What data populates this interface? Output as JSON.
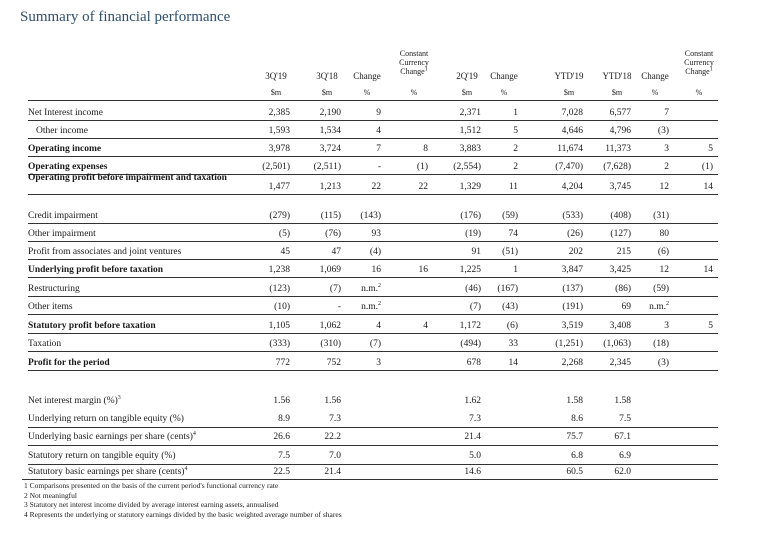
{
  "title": "Summary of financial performance",
  "columns": [
    {
      "key": "q319",
      "header": "3Q'19",
      "unit": "$m",
      "right": 290
    },
    {
      "key": "q318",
      "header": "3Q'18",
      "unit": "$m",
      "right": 341
    },
    {
      "key": "chg1",
      "header": "Change",
      "unit": "%",
      "right": 381
    },
    {
      "key": "cc1",
      "header": "Constant Currency Change¹",
      "unit": "%",
      "right": 428
    },
    {
      "key": "q219",
      "header": "2Q'19",
      "unit": "$m",
      "right": 481
    },
    {
      "key": "chg2",
      "header": "Change",
      "unit": "%",
      "right": 518
    },
    {
      "key": "ytd19",
      "header": "YTD'19",
      "unit": "$m",
      "right": 583
    },
    {
      "key": "ytd18",
      "header": "YTD'18",
      "unit": "$m",
      "right": 631
    },
    {
      "key": "chg3",
      "header": "Change",
      "unit": "%",
      "right": 669
    },
    {
      "key": "cc3",
      "header": "Constant Currency Change¹",
      "unit": "%",
      "right": 713
    }
  ],
  "rows": [
    {
      "label": "Net Interest income",
      "bold": false,
      "indent": false,
      "values": [
        "2,385",
        "2,190",
        "9",
        "",
        "2,371",
        "1",
        "7,028",
        "6,577",
        "7",
        ""
      ]
    },
    {
      "label": "Other income",
      "bold": false,
      "indent": true,
      "values": [
        "1,593",
        "1,534",
        "4",
        "",
        "1,512",
        "5",
        "4,646",
        "4,796",
        "(3)",
        ""
      ]
    },
    {
      "label": "Operating income",
      "bold": true,
      "indent": false,
      "values": [
        "3,978",
        "3,724",
        "7",
        "8",
        "3,883",
        "2",
        "11,674",
        "11,373",
        "3",
        "5"
      ]
    },
    {
      "label": "Operating expenses",
      "bold": true,
      "indent": false,
      "values": [
        "(2,501)",
        "(2,511)",
        "-",
        "(1)",
        "(2,554)",
        "2",
        "(7,470)",
        "(7,628)",
        "2",
        "(1)"
      ]
    },
    {
      "label": "Operating profit before impairment and taxation",
      "bold": true,
      "indent": false,
      "values": [
        "1,477",
        "1,213",
        "22",
        "22",
        "1,329",
        "11",
        "4,204",
        "3,745",
        "12",
        "14"
      ]
    },
    {
      "label": "Credit impairment",
      "bold": false,
      "indent": false,
      "values": [
        "(279)",
        "(115)",
        "(143)",
        "",
        "(176)",
        "(59)",
        "(533)",
        "(408)",
        "(31)",
        ""
      ]
    },
    {
      "label": "Other impairment",
      "bold": false,
      "indent": false,
      "values": [
        "(5)",
        "(76)",
        "93",
        "",
        "(19)",
        "74",
        "(26)",
        "(127)",
        "80",
        ""
      ]
    },
    {
      "label": "Profit from associates and joint ventures",
      "bold": false,
      "indent": false,
      "values": [
        "45",
        "47",
        "(4)",
        "",
        "91",
        "(51)",
        "202",
        "215",
        "(6)",
        ""
      ]
    },
    {
      "label": "Underlying profit before taxation",
      "bold": true,
      "indent": false,
      "values": [
        "1,238",
        "1,069",
        "16",
        "16",
        "1,225",
        "1",
        "3,847",
        "3,425",
        "12",
        "14"
      ]
    },
    {
      "label": "Restructuring",
      "bold": false,
      "indent": false,
      "values": [
        "(123)",
        "(7)",
        "n.m.²",
        "",
        "(46)",
        "(167)",
        "(137)",
        "(86)",
        "(59)",
        ""
      ]
    },
    {
      "label": "Other items",
      "bold": false,
      "indent": false,
      "values": [
        "(10)",
        "-",
        "n.m.²",
        "",
        "(7)",
        "(43)",
        "(191)",
        "69",
        "n.m.²",
        ""
      ]
    },
    {
      "label": "Statutory profit before taxation",
      "bold": true,
      "indent": false,
      "values": [
        "1,105",
        "1,062",
        "4",
        "4",
        "1,172",
        "(6)",
        "3,519",
        "3,408",
        "3",
        "5"
      ]
    },
    {
      "label": "Taxation",
      "bold": false,
      "indent": false,
      "values": [
        "(333)",
        "(310)",
        "(7)",
        "",
        "(494)",
        "33",
        "(1,251)",
        "(1,063)",
        "(18)",
        ""
      ]
    },
    {
      "label": "Profit for the period",
      "bold": true,
      "indent": false,
      "values": [
        "772",
        "752",
        "3",
        "",
        "678",
        "14",
        "2,268",
        "2,345",
        "(3)",
        ""
      ]
    }
  ],
  "ratios": [
    {
      "label": "Net interest margin (%)³",
      "values": [
        "1.56",
        "1.56",
        "",
        "",
        "1.62",
        "",
        "1.58",
        "1.58",
        "",
        ""
      ]
    },
    {
      "label": "Underlying return on tangible equity (%)",
      "values": [
        "8.9",
        "7.3",
        "",
        "",
        "7.3",
        "",
        "8.6",
        "7.5",
        "",
        ""
      ]
    },
    {
      "label": "Underlying basic earnings per share (cents)⁴",
      "values": [
        "26.6",
        "22.2",
        "",
        "",
        "21.4",
        "",
        "75.7",
        "67.1",
        "",
        ""
      ]
    },
    {
      "label": "Statutory return on tangible equity (%)",
      "values": [
        "7.5",
        "7.0",
        "",
        "",
        "5.0",
        "",
        "6.8",
        "6.9",
        "",
        ""
      ]
    },
    {
      "label": "Statutory basic earnings per share (cents)⁴",
      "values": [
        "22.5",
        "21.4",
        "",
        "",
        "14.6",
        "",
        "60.5",
        "62.0",
        "",
        ""
      ]
    }
  ],
  "footnotes": [
    "1 Comparisons presented on the basis of the current period's functional currency rate",
    "2 Not meaningful",
    "3 Statutory net interest income divided by average interest earning assets, annualised",
    "4 Represents the underlying or statutory earnings divided by the basic weighted average number of shares"
  ]
}
